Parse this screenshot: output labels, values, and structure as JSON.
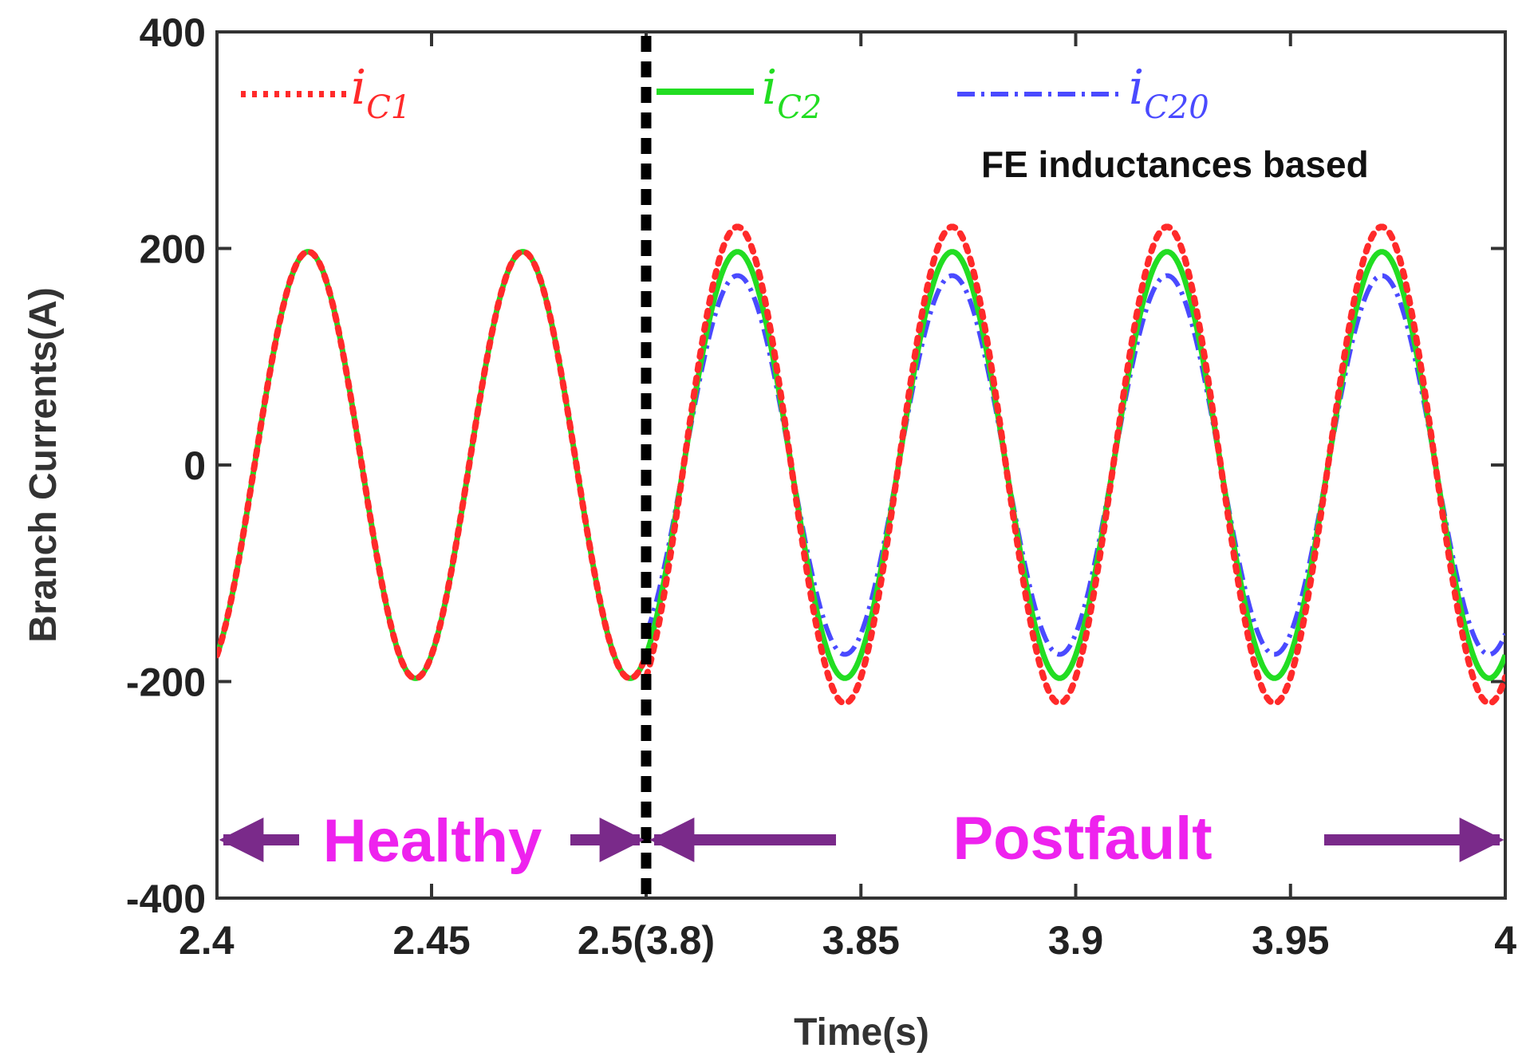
{
  "chart_data": {
    "type": "line",
    "title": "",
    "xlabel": "Time(s)",
    "ylabel": "Branch Currents(A)",
    "x_segments": [
      {
        "label": "Healthy",
        "t_start": 2.4,
        "t_end": 2.5
      },
      {
        "label": "Postfault",
        "t_start": 3.8,
        "t_end": 4.0
      }
    ],
    "xtick_labels": [
      "2.4",
      "2.45",
      "2.5(3.8)",
      "3.85",
      "3.9",
      "3.95",
      "4"
    ],
    "ylim": [
      -400,
      400
    ],
    "yticks": [
      -400,
      -200,
      0,
      200,
      400
    ],
    "ytick_labels": [
      "-400",
      "-200",
      "0",
      "200",
      "400"
    ],
    "fault_line_label": "2.5(3.8)",
    "frequency_hz": 20,
    "series": [
      {
        "name": "i_C1",
        "symbol": "i",
        "subscript": "C1",
        "color": "#ff2a2a",
        "style": "dotted",
        "healthy_amplitude": 197,
        "postfault_amplitude": 220
      },
      {
        "name": "i_C2",
        "symbol": "i",
        "subscript": "C2",
        "color": "#22dd22",
        "style": "solid",
        "healthy_amplitude": 197,
        "postfault_amplitude": 197
      },
      {
        "name": "i_C20",
        "symbol": "i",
        "subscript": "C20",
        "color": "#4a4aff",
        "style": "dash-dot",
        "healthy_amplitude": 197,
        "postfault_amplitude": 175
      }
    ],
    "annotations": {
      "note": "FE inductances based",
      "healthy_label": "Healthy",
      "postfault_label": "Postfault"
    },
    "colors": {
      "arrow": "#7a2a8a",
      "divider": "#000000",
      "region_text": "#ee22ee"
    }
  }
}
